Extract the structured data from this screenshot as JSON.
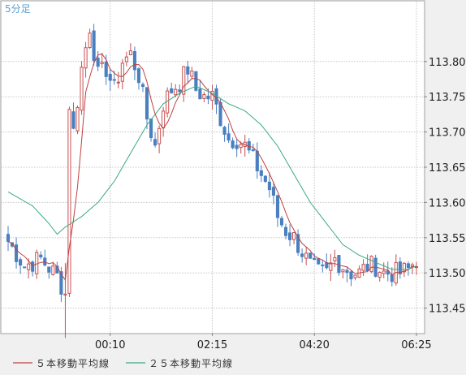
{
  "timeframe_label": "5分足",
  "chart_data": {
    "type": "candlestick",
    "ylim": [
      113.415,
      113.885
    ],
    "y_ticks": [
      113.8,
      113.75,
      113.7,
      113.65,
      113.6,
      113.55,
      113.5,
      113.45
    ],
    "y_tick_labels": [
      "113.80",
      "113.75",
      "113.70",
      "113.65",
      "113.60",
      "113.55",
      "113.50",
      "113.45"
    ],
    "x_tick_labels": [
      {
        "label": "00:10",
        "index": 25
      },
      {
        "label": "02:15",
        "index": 50
      },
      {
        "label": "04:20",
        "index": 75
      },
      {
        "label": "06:25",
        "index": 100
      }
    ],
    "candle_count": 101,
    "grid": true,
    "colors": {
      "up": "#c85050",
      "down": "#4a7fc0",
      "ma5": "#c04040",
      "ma25": "#3aaa80",
      "grid": "#c8c8c8",
      "plot_bg": "#ffffff"
    },
    "legend": [
      {
        "name": "５本移動平均線",
        "color": "#c04040"
      },
      {
        "name": "２５本移動平均線",
        "color": "#3aaa80"
      }
    ],
    "close_path": [
      [
        0,
        113.545
      ],
      [
        4,
        113.51
      ],
      [
        8,
        113.52
      ],
      [
        12,
        113.495
      ],
      [
        14,
        113.47
      ],
      [
        15,
        113.74
      ],
      [
        16,
        113.7
      ],
      [
        18,
        113.79
      ],
      [
        20,
        113.85
      ],
      [
        22,
        113.78
      ],
      [
        24,
        113.79
      ],
      [
        26,
        113.76
      ],
      [
        28,
        113.8
      ],
      [
        30,
        113.81
      ],
      [
        32,
        113.78
      ],
      [
        34,
        113.72
      ],
      [
        36,
        113.68
      ],
      [
        38,
        113.74
      ],
      [
        40,
        113.76
      ],
      [
        42,
        113.77
      ],
      [
        44,
        113.79
      ],
      [
        46,
        113.76
      ],
      [
        48,
        113.75
      ],
      [
        50,
        113.75
      ],
      [
        52,
        113.72
      ],
      [
        54,
        113.69
      ],
      [
        56,
        113.69
      ],
      [
        58,
        113.68
      ],
      [
        60,
        113.66
      ],
      [
        62,
        113.64
      ],
      [
        64,
        113.62
      ],
      [
        66,
        113.58
      ],
      [
        68,
        113.56
      ],
      [
        70,
        113.55
      ],
      [
        72,
        113.53
      ],
      [
        74,
        113.51
      ],
      [
        76,
        113.5
      ],
      [
        78,
        113.5
      ],
      [
        80,
        113.52
      ],
      [
        82,
        113.51
      ],
      [
        84,
        113.5
      ],
      [
        86,
        113.5
      ],
      [
        88,
        113.51
      ],
      [
        90,
        113.51
      ],
      [
        92,
        113.5
      ],
      [
        94,
        113.5
      ],
      [
        96,
        113.5
      ],
      [
        98,
        113.505
      ],
      [
        100,
        113.52
      ]
    ],
    "ma25_path": [
      [
        0,
        113.615
      ],
      [
        6,
        113.595
      ],
      [
        10,
        113.57
      ],
      [
        12,
        113.555
      ],
      [
        14,
        113.565
      ],
      [
        18,
        113.58
      ],
      [
        22,
        113.6
      ],
      [
        26,
        113.63
      ],
      [
        30,
        113.67
      ],
      [
        34,
        113.71
      ],
      [
        38,
        113.74
      ],
      [
        42,
        113.755
      ],
      [
        46,
        113.765
      ],
      [
        50,
        113.755
      ],
      [
        54,
        113.74
      ],
      [
        58,
        113.73
      ],
      [
        62,
        113.71
      ],
      [
        66,
        113.68
      ],
      [
        70,
        113.64
      ],
      [
        74,
        113.6
      ],
      [
        78,
        113.57
      ],
      [
        82,
        113.54
      ],
      [
        86,
        113.525
      ],
      [
        90,
        113.515
      ],
      [
        94,
        113.505
      ],
      [
        98,
        113.505
      ],
      [
        100,
        113.51
      ]
    ]
  }
}
